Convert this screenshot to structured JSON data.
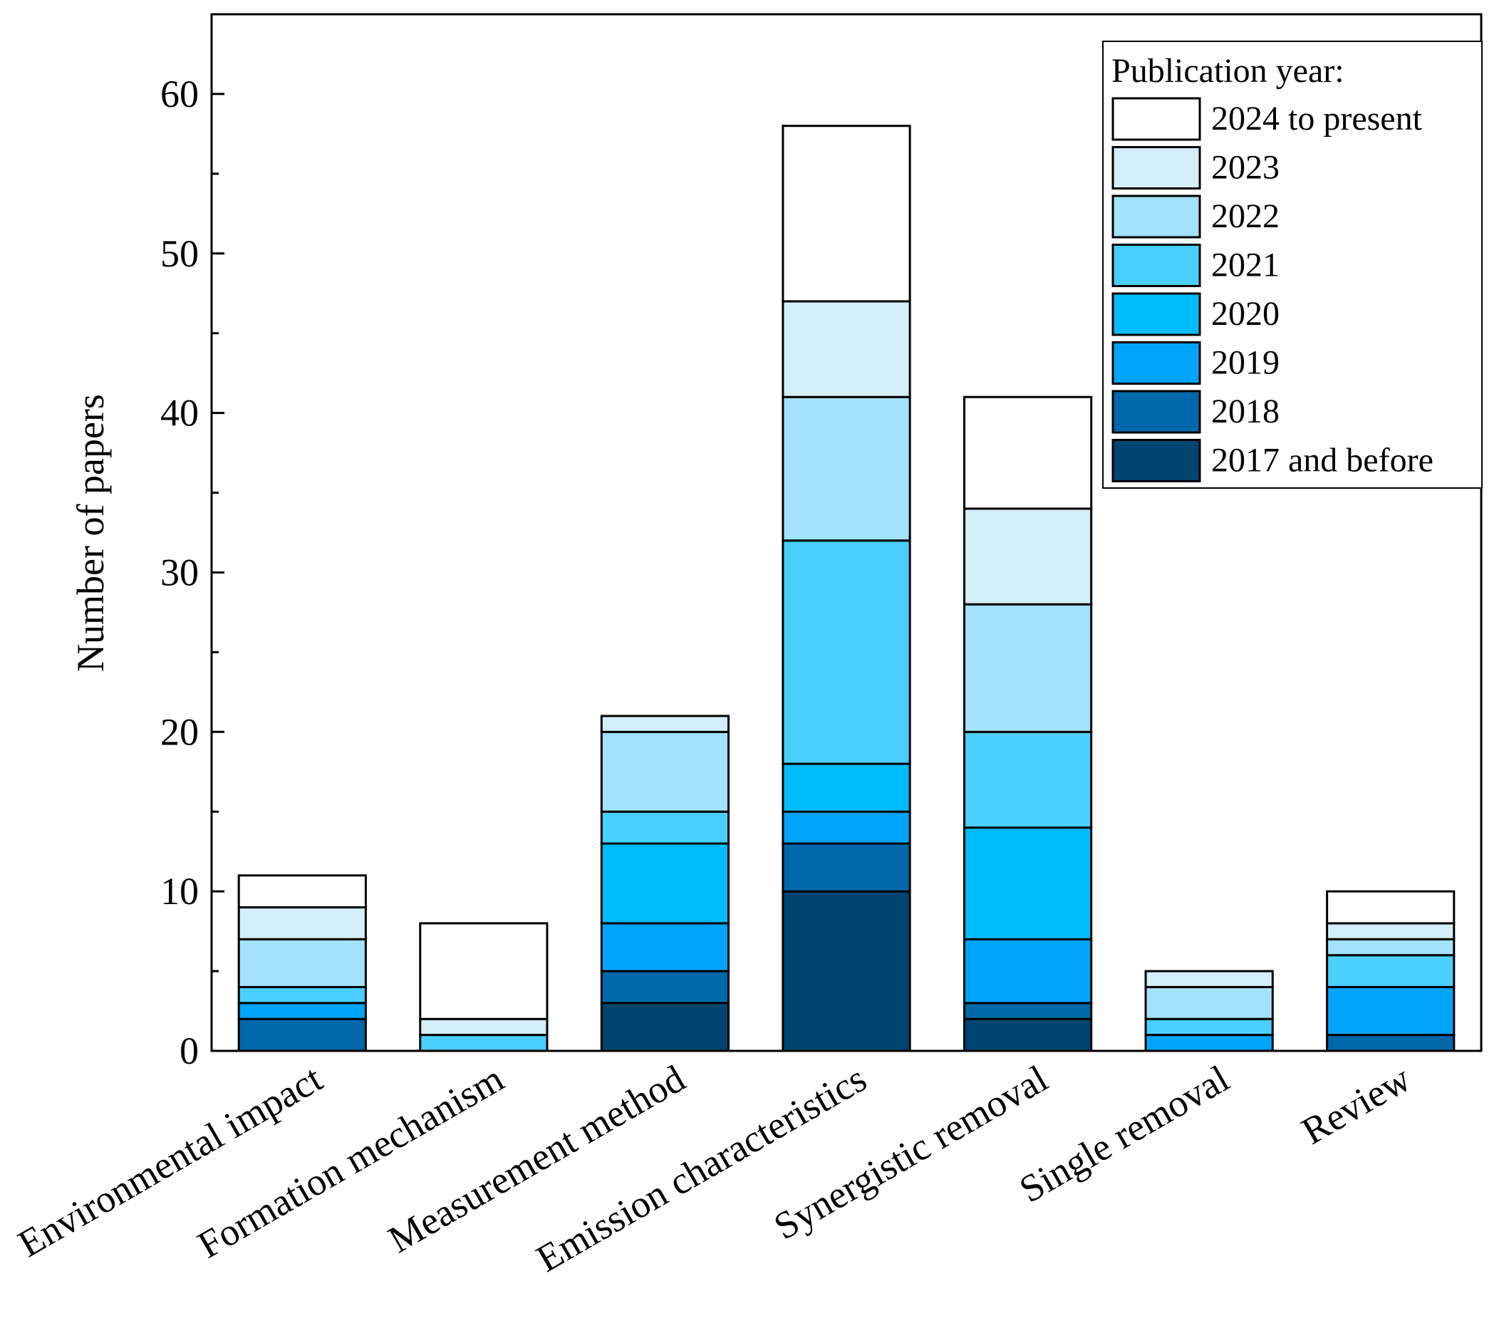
{
  "chart_data": {
    "type": "bar",
    "stacked": true,
    "categories": [
      "Environmental impact",
      "Formation mechanism",
      "Measurement method",
      "Emission characteristics",
      "Synergistic removal",
      "Single removal",
      "Review"
    ],
    "ylabel": "Number of papers",
    "xlabel": "",
    "ylim": [
      0,
      65
    ],
    "yticks": [
      "0",
      "10",
      "20",
      "30",
      "40",
      "50",
      "60"
    ],
    "grid": false,
    "legend": {
      "title": "Publication year:",
      "placement": "top-right"
    },
    "series": [
      {
        "name": "2017 and before",
        "color": "#004570",
        "values": [
          0,
          0,
          3,
          10,
          2,
          0,
          0
        ]
      },
      {
        "name": "2018",
        "color": "#0068AA",
        "values": [
          2,
          0,
          2,
          3,
          1,
          0,
          1
        ]
      },
      {
        "name": "2019",
        "color": "#00A5FA",
        "values": [
          1,
          0,
          3,
          2,
          4,
          1,
          3
        ]
      },
      {
        "name": "2020",
        "color": "#00BCFC",
        "values": [
          0,
          0,
          5,
          3,
          7,
          0,
          0
        ]
      },
      {
        "name": "2021",
        "color": "#4ACFFD",
        "values": [
          1,
          1,
          2,
          14,
          6,
          1,
          2
        ]
      },
      {
        "name": "2022",
        "color": "#A3E2FC",
        "values": [
          3,
          0,
          5,
          9,
          8,
          2,
          1
        ]
      },
      {
        "name": "2023",
        "color": "#D3EDF9",
        "values": [
          2,
          1,
          1,
          6,
          6,
          1,
          1
        ]
      },
      {
        "name": "2024 to present",
        "color": "#FFFFFF",
        "values": [
          2,
          6,
          0,
          11,
          7,
          0,
          2
        ]
      }
    ]
  }
}
